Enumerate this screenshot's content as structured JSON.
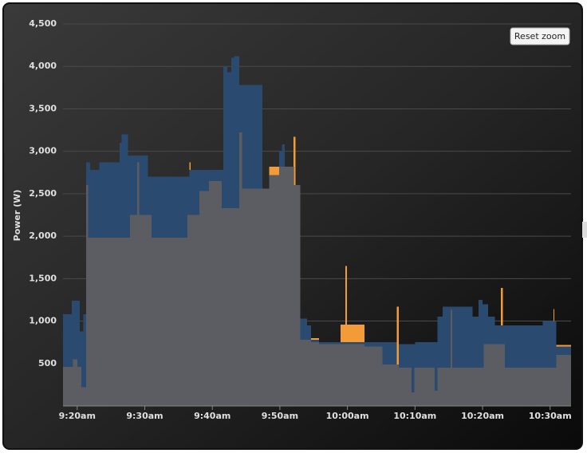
{
  "chart_data": {
    "type": "step-area",
    "y_axis_title": "Power (W)",
    "reset_zoom": "Reset zoom",
    "grid": true,
    "ylim": [
      0,
      4500
    ],
    "yticks": [
      500,
      {
        "value": 1000,
        "label": "1,000"
      },
      {
        "value": 1500,
        "label": "1,500"
      },
      {
        "value": 2000,
        "label": "2,000"
      },
      {
        "value": 2500,
        "label": "2,500"
      },
      {
        "value": 3000,
        "label": "3,000"
      },
      {
        "value": 3500,
        "label": "3,500"
      },
      {
        "value": 4000,
        "label": "4,000"
      },
      {
        "value": 4500,
        "label": "4,500"
      }
    ],
    "xlim": [
      557.9,
      633.1
    ],
    "xticks": [
      {
        "value": 560,
        "label": "9:20am"
      },
      {
        "value": 570,
        "label": "9:30am"
      },
      {
        "value": 580,
        "label": "9:40am"
      },
      {
        "value": 590,
        "label": "9:50am"
      },
      {
        "value": 600,
        "label": "10:00am"
      },
      {
        "value": 610,
        "label": "10:10am"
      },
      {
        "value": 620,
        "label": "10:20am"
      },
      {
        "value": 630,
        "label": "10:30am"
      }
    ],
    "series": [
      {
        "color": "#f39b37",
        "x": [
          557.9,
          576.6,
          576.8,
          588.4,
          592.0,
          592.3,
          593.0,
          594.6,
          595.8,
          599.0,
          599.7,
          599.9,
          602.5,
          607.3,
          607.6,
          622.7,
          623.0,
          630.5,
          630.6,
          630.9,
          633.1
        ],
        "values": [
          460,
          2870,
          2250,
          2820,
          3170,
          2600,
          780,
          800,
          730,
          960,
          1650,
          960,
          700,
          1170,
          450,
          1390,
          450,
          1140,
          450,
          720,
          720
        ]
      },
      {
        "color": "#2b4a70",
        "x": [
          557.9,
          559.2,
          560.4,
          560.9,
          561.3,
          561.9,
          563.3,
          566.3,
          566.6,
          567.5,
          570.5,
          576.6,
          581.6,
          582.2,
          582.8,
          583.2,
          584.0,
          587.4,
          589.9,
          590.3,
          590.7,
          592.1,
          593.0,
          594.0,
          594.6,
          595.8,
          607.3,
          607.6,
          610.0,
          613.3,
          614.1,
          618.5,
          619.4,
          620.0,
          620.8,
          621.8,
          628.9,
          630.9,
          633.1
        ],
        "values": [
          1080,
          1240,
          880,
          1080,
          2870,
          2780,
          2870,
          3100,
          3200,
          2950,
          2700,
          2780,
          4000,
          3930,
          4100,
          4120,
          3780,
          2560,
          3000,
          3080,
          2820,
          2520,
          1030,
          950,
          780,
          750,
          480,
          730,
          750,
          1050,
          1170,
          1050,
          1250,
          1200,
          1050,
          950,
          1000,
          700,
          700
        ]
      },
      {
        "color": "#5b5d63",
        "x": [
          557.9,
          559.4,
          560.0,
          560.6,
          561.3,
          561.6,
          567.8,
          568.9,
          569.2,
          571.0,
          576.3,
          578.1,
          579.5,
          581.4,
          584.0,
          584.4,
          588.4,
          589.9,
          592.0,
          593.0,
          594.6,
          595.8,
          602.5,
          605.2,
          607.6,
          609.5,
          609.9,
          612.9,
          613.3,
          615.3,
          615.5,
          620.2,
          623.3,
          630.9,
          633.1
        ],
        "values": [
          460,
          550,
          460,
          220,
          2600,
          1980,
          2250,
          2870,
          2250,
          1980,
          2250,
          2530,
          2650,
          2330,
          3220,
          2560,
          2720,
          2820,
          2600,
          780,
          750,
          730,
          700,
          490,
          450,
          160,
          450,
          180,
          450,
          1130,
          450,
          730,
          450,
          600,
          600
        ]
      }
    ]
  }
}
